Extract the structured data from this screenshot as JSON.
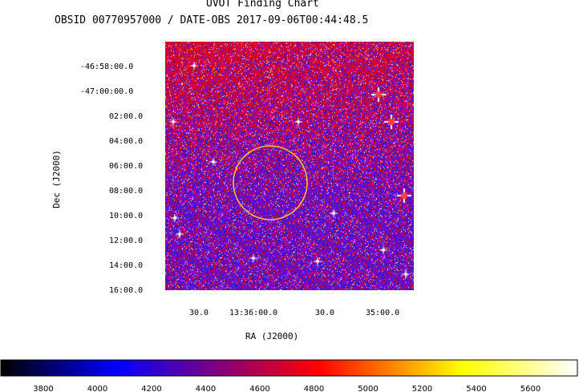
{
  "header": {
    "title": "UVOT Finding Chart",
    "subtitle": "OBSID 00770957000 / DATE-OBS 2017-09-06T00:44:48.5"
  },
  "axes": {
    "ra_label": "RA (J2000)",
    "dec_label": "Dec (J2000)",
    "dec_ticks": [
      "-46:58:00.0",
      "-47:00:00.0",
      "02:00.0",
      "04:00.0",
      "06:00.0",
      "08:00.0",
      "10:00.0",
      "12:00.0",
      "14:00.0",
      "16:00.0"
    ],
    "ra_ticks": [
      "30.0",
      "13:36:00.0",
      "30.0",
      "35:00.0"
    ]
  },
  "colorbar": {
    "ticks": [
      "3800",
      "4000",
      "4200",
      "4400",
      "4600",
      "4800",
      "5000",
      "5200",
      "5400",
      "5600"
    ],
    "colors": [
      "#000000",
      "#0000ff",
      "#ff0000",
      "#ffff00",
      "#ffffff"
    ]
  },
  "marker": {
    "color": "#f0c040"
  }
}
